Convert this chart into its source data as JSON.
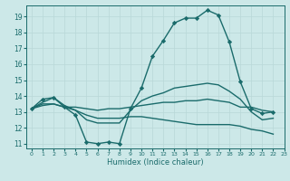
{
  "xlabel": "Humidex (Indice chaleur)",
  "bg_color": "#cce8e8",
  "grid_color": "#b8d8d8",
  "line_color": "#1a6b6b",
  "xlim": [
    -0.5,
    23
  ],
  "ylim": [
    10.7,
    19.7
  ],
  "yticks": [
    11,
    12,
    13,
    14,
    15,
    16,
    17,
    18,
    19
  ],
  "xticks": [
    0,
    1,
    2,
    3,
    4,
    5,
    6,
    7,
    8,
    9,
    10,
    11,
    12,
    13,
    14,
    15,
    16,
    17,
    18,
    19,
    20,
    21,
    22,
    23
  ],
  "series": [
    {
      "x": [
        0,
        1,
        2,
        3,
        4,
        5,
        6,
        7,
        8,
        9,
        10,
        11,
        12,
        13,
        14,
        15,
        16,
        17,
        18,
        19,
        20,
        21,
        22
      ],
      "y": [
        13.2,
        13.8,
        13.9,
        13.3,
        12.8,
        11.1,
        11.0,
        11.1,
        11.0,
        13.2,
        14.5,
        16.5,
        17.5,
        18.6,
        18.9,
        18.9,
        19.4,
        19.1,
        17.4,
        14.9,
        13.2,
        12.9,
        13.0
      ],
      "marker": "D",
      "markersize": 2.2,
      "linewidth": 1.0
    },
    {
      "x": [
        0,
        1,
        2,
        3,
        4,
        5,
        6,
        7,
        8,
        9,
        10,
        11,
        12,
        13,
        14,
        15,
        16,
        17,
        18,
        19,
        20,
        21,
        22
      ],
      "y": [
        13.2,
        13.5,
        13.5,
        13.3,
        13.3,
        13.2,
        13.1,
        13.2,
        13.2,
        13.3,
        13.4,
        13.5,
        13.6,
        13.6,
        13.7,
        13.7,
        13.8,
        13.7,
        13.6,
        13.3,
        13.3,
        13.1,
        13.0
      ],
      "marker": null,
      "markersize": 0,
      "linewidth": 1.0
    },
    {
      "x": [
        0,
        1,
        2,
        3,
        4,
        5,
        6,
        7,
        8,
        9,
        10,
        11,
        12,
        13,
        14,
        15,
        16,
        17,
        18,
        19,
        20,
        21,
        22
      ],
      "y": [
        13.2,
        13.6,
        13.9,
        13.4,
        13.1,
        12.5,
        12.3,
        12.3,
        12.3,
        13.1,
        13.7,
        14.0,
        14.2,
        14.5,
        14.6,
        14.7,
        14.8,
        14.7,
        14.3,
        13.8,
        13.0,
        12.5,
        12.6
      ],
      "marker": null,
      "markersize": 0,
      "linewidth": 1.0
    },
    {
      "x": [
        0,
        1,
        2,
        3,
        4,
        5,
        6,
        7,
        8,
        9,
        10,
        11,
        12,
        13,
        14,
        15,
        16,
        17,
        18,
        19,
        20,
        21,
        22
      ],
      "y": [
        13.2,
        13.4,
        13.5,
        13.3,
        13.1,
        12.8,
        12.6,
        12.6,
        12.6,
        12.7,
        12.7,
        12.6,
        12.5,
        12.4,
        12.3,
        12.2,
        12.2,
        12.2,
        12.2,
        12.1,
        11.9,
        11.8,
        11.6
      ],
      "marker": null,
      "markersize": 0,
      "linewidth": 1.0
    }
  ]
}
